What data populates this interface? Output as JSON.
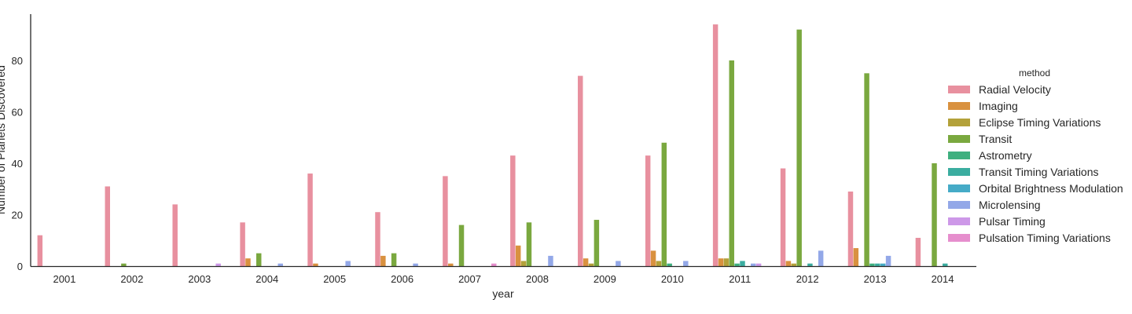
{
  "chart_data": {
    "type": "bar",
    "xlabel": "year",
    "ylabel": "Number of Planets Discovered",
    "ylim": [
      0,
      98
    ],
    "yticks": [
      0,
      20,
      40,
      60,
      80
    ],
    "categories": [
      "2001",
      "2002",
      "2003",
      "2004",
      "2005",
      "2006",
      "2007",
      "2008",
      "2009",
      "2010",
      "2011",
      "2012",
      "2013",
      "2014"
    ],
    "legend": {
      "title": "method",
      "placement": "right"
    },
    "series": [
      {
        "name": "Radial Velocity",
        "color": "#e8909f",
        "values": [
          12,
          31,
          24,
          17,
          36,
          21,
          35,
          43,
          74,
          43,
          94,
          38,
          29,
          11
        ]
      },
      {
        "name": "Imaging",
        "color": "#d9913f",
        "values": [
          0,
          0,
          0,
          3,
          1,
          4,
          1,
          8,
          3,
          6,
          3,
          2,
          7,
          0
        ]
      },
      {
        "name": "Eclipse Timing Variations",
        "color": "#b3a13a",
        "values": [
          0,
          0,
          0,
          0,
          0,
          0,
          0,
          2,
          1,
          2,
          3,
          1,
          0,
          0
        ]
      },
      {
        "name": "Transit",
        "color": "#7aa83f",
        "values": [
          0,
          1,
          0,
          5,
          0,
          5,
          16,
          17,
          18,
          48,
          80,
          92,
          75,
          40
        ]
      },
      {
        "name": "Astrometry",
        "color": "#3fb07f",
        "values": [
          0,
          0,
          0,
          0,
          0,
          0,
          0,
          0,
          0,
          1,
          1,
          0,
          1,
          0
        ]
      },
      {
        "name": "Transit Timing Variations",
        "color": "#3bada0",
        "values": [
          0,
          0,
          0,
          0,
          0,
          0,
          0,
          0,
          0,
          0,
          2,
          1,
          1,
          1
        ]
      },
      {
        "name": "Orbital Brightness Modulation",
        "color": "#46abc7",
        "values": [
          0,
          0,
          0,
          0,
          0,
          0,
          0,
          0,
          0,
          0,
          0,
          0,
          1,
          0
        ]
      },
      {
        "name": "Microlensing",
        "color": "#93a8e8",
        "values": [
          0,
          0,
          0,
          1,
          2,
          1,
          0,
          4,
          2,
          2,
          1,
          6,
          4,
          0
        ]
      },
      {
        "name": "Pulsar Timing",
        "color": "#cd98e8",
        "values": [
          0,
          0,
          1,
          0,
          0,
          0,
          0,
          0,
          0,
          0,
          1,
          0,
          0,
          0
        ]
      },
      {
        "name": "Pulsation Timing Variations",
        "color": "#e68ecd",
        "values": [
          0,
          0,
          0,
          0,
          0,
          0,
          1,
          0,
          0,
          0,
          0,
          0,
          0,
          0
        ]
      }
    ]
  }
}
